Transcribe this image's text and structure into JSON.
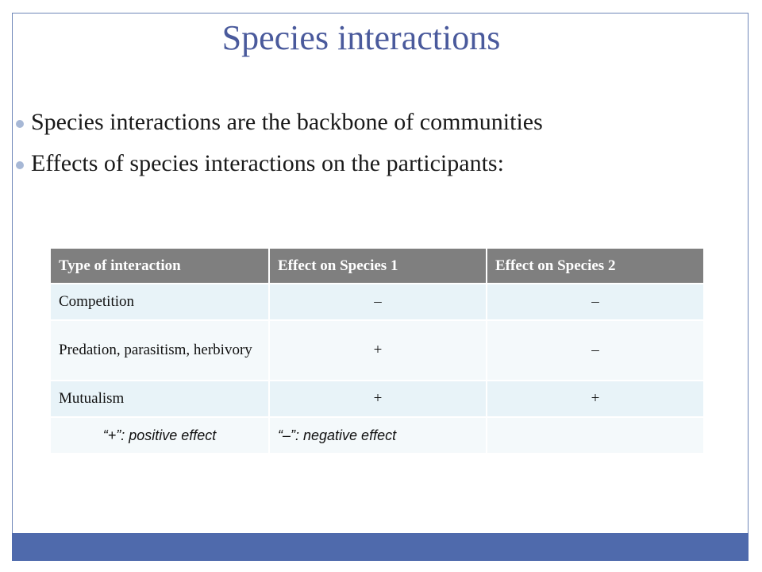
{
  "slide": {
    "title": "Species interactions",
    "bullets": [
      "Species interactions are the backbone of communities",
      "Effects of species interactions on the participants:"
    ]
  },
  "table": {
    "headers": [
      "Type of interaction",
      "Effect on Species 1",
      "Effect on Species 2"
    ],
    "rows": [
      [
        "Competition",
        "–",
        "–"
      ],
      [
        "Predation, parasitism, herbivory",
        "+",
        "–"
      ],
      [
        "Mutualism",
        "+",
        "+"
      ]
    ],
    "legend": [
      "“+”: positive effect",
      "“–”: negative effect",
      ""
    ]
  },
  "colors": {
    "title": "#4a5a9c",
    "bottom_bar": "#4f6aac",
    "header_bg": "#7f7f7f",
    "row_bg_odd": "#e8f3f8",
    "row_bg_even": "#f4f9fb",
    "bullet": "#a7b8d6"
  }
}
